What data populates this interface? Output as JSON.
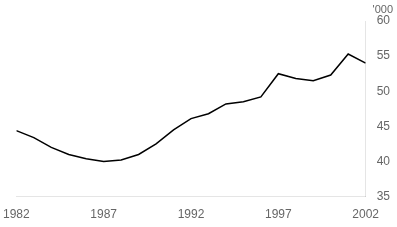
{
  "chart_data": {
    "type": "line",
    "x": [
      1982,
      1983,
      1984,
      1985,
      1986,
      1987,
      1988,
      1989,
      1990,
      1991,
      1992,
      1993,
      1994,
      1995,
      1996,
      1997,
      1998,
      1999,
      2000,
      2001,
      2002
    ],
    "values": [
      44.4,
      43.4,
      42.0,
      41.0,
      40.4,
      40.0,
      40.2,
      41.0,
      42.5,
      44.5,
      46.1,
      46.8,
      48.2,
      48.5,
      49.2,
      52.5,
      51.8,
      51.5,
      52.3,
      55.3,
      54.0
    ],
    "color": "#000000",
    "xlim": [
      1982,
      2002
    ],
    "xticks": [
      1982,
      1987,
      1992,
      1997,
      2002
    ],
    "ylim": [
      35,
      60
    ],
    "yticks": [
      35,
      40,
      45,
      50,
      55,
      60
    ],
    "annotations": [
      "'000"
    ],
    "grid": false
  }
}
